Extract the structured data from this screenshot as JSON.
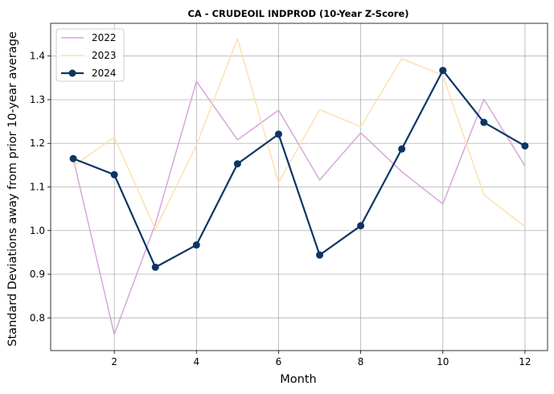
{
  "chart_data": {
    "type": "line",
    "title": "CA - CRUDEOIL INDPROD (10-Year Z-Score)",
    "xlabel": "Month",
    "ylabel": "Standard Deviations away from prior 10-year average",
    "x": [
      1,
      2,
      3,
      4,
      5,
      6,
      7,
      8,
      9,
      10,
      11,
      12
    ],
    "xlim": [
      0.45,
      12.55
    ],
    "ylim": [
      0.725,
      1.475
    ],
    "xticks": [
      2,
      4,
      6,
      8,
      10,
      12
    ],
    "yticks": [
      0.8,
      0.9,
      1.0,
      1.1,
      1.2,
      1.3,
      1.4
    ],
    "ytick_labels": [
      "0.8",
      "0.9",
      "1.0",
      "1.1",
      "1.2",
      "1.3",
      "1.4"
    ],
    "grid": true,
    "legend_position": "top-left",
    "series": [
      {
        "name": "2022",
        "color": "#d7a6dc",
        "width": 1.5,
        "marker": false,
        "values": [
          1.165,
          0.762,
          1.015,
          1.342,
          1.208,
          1.276,
          1.116,
          1.224,
          1.135,
          1.061,
          1.301,
          1.148
        ]
      },
      {
        "name": "2023",
        "color": "#fde1b0",
        "width": 1.5,
        "marker": false,
        "values": [
          1.148,
          1.214,
          1.003,
          1.196,
          1.44,
          1.11,
          1.277,
          1.238,
          1.394,
          1.356,
          1.082,
          1.009
        ]
      },
      {
        "name": "2024",
        "color": "#0c3564",
        "width": 2.2,
        "marker": true,
        "values": [
          1.165,
          1.128,
          0.916,
          0.967,
          1.153,
          1.221,
          0.944,
          1.011,
          1.187,
          1.367,
          1.248,
          1.194
        ]
      }
    ]
  }
}
